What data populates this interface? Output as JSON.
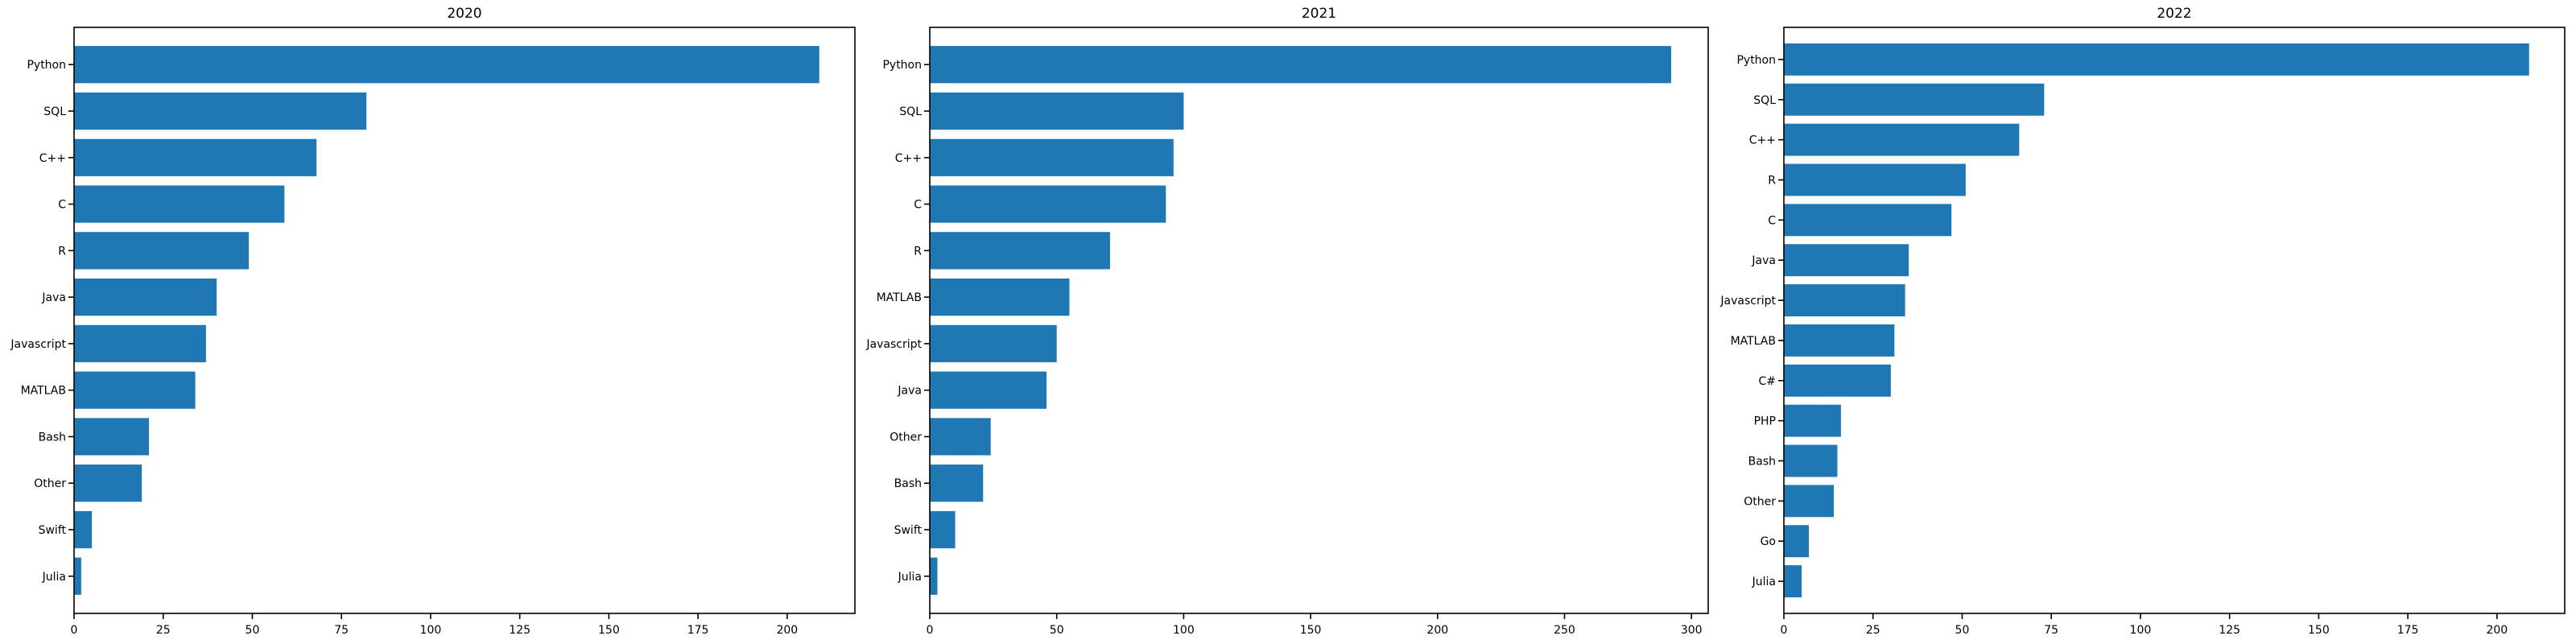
{
  "chart_data": [
    {
      "type": "bar",
      "orientation": "horizontal",
      "title": "2020",
      "xlabel": "",
      "ylabel": "",
      "categories": [
        "Python",
        "SQL",
        "C++",
        "C",
        "R",
        "Java",
        "Javascript",
        "MATLAB",
        "Bash",
        "Other",
        "Swift",
        "Julia"
      ],
      "values": [
        209,
        82,
        68,
        59,
        49,
        40,
        37,
        34,
        21,
        19,
        5,
        2
      ],
      "xlim": [
        0,
        219
      ],
      "xticks": [
        0,
        25,
        50,
        75,
        100,
        125,
        150,
        175,
        200
      ],
      "bar_color": "#1f77b4",
      "grid": false,
      "legend": "none"
    },
    {
      "type": "bar",
      "orientation": "horizontal",
      "title": "2021",
      "xlabel": "",
      "ylabel": "",
      "categories": [
        "Python",
        "SQL",
        "C++",
        "C",
        "R",
        "MATLAB",
        "Javascript",
        "Java",
        "Other",
        "Bash",
        "Swift",
        "Julia"
      ],
      "values": [
        292,
        100,
        96,
        93,
        71,
        55,
        50,
        46,
        24,
        21,
        10,
        3
      ],
      "xlim": [
        0,
        306.6
      ],
      "xticks": [
        0,
        50,
        100,
        150,
        200,
        250,
        300
      ],
      "bar_color": "#1f77b4",
      "grid": false,
      "legend": "none"
    },
    {
      "type": "bar",
      "orientation": "horizontal",
      "title": "2022",
      "xlabel": "",
      "ylabel": "",
      "categories": [
        "Python",
        "SQL",
        "C++",
        "R",
        "C",
        "Java",
        "Javascript",
        "MATLAB",
        "C#",
        "PHP",
        "Bash",
        "Other",
        "Go",
        "Julia"
      ],
      "values": [
        209,
        73,
        66,
        51,
        47,
        35,
        34,
        31,
        30,
        16,
        15,
        14,
        7,
        5
      ],
      "xlim": [
        0,
        219
      ],
      "xticks": [
        0,
        25,
        50,
        75,
        100,
        125,
        150,
        175,
        200
      ],
      "bar_color": "#1f77b4",
      "grid": false,
      "legend": "none"
    }
  ]
}
